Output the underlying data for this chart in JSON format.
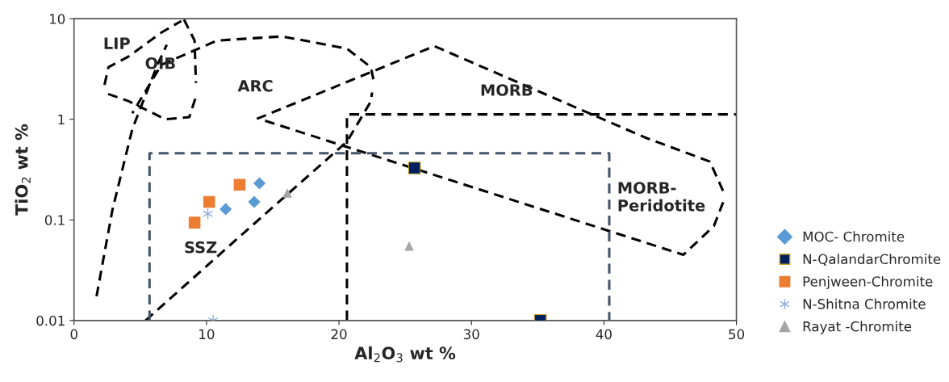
{
  "chart_data": {
    "type": "scatter",
    "xlabel": "Al$_{2}$O$_{3}$ wt %",
    "ylabel": "TiO$_{2}$ wt %",
    "xlim": [
      0,
      50
    ],
    "xticks": [
      0,
      10,
      20,
      30,
      40,
      50
    ],
    "ylim": [
      0.01,
      10
    ],
    "yticks": [
      0.01,
      0.1,
      1,
      10
    ],
    "log": "y",
    "grid": false,
    "legend": "right",
    "series": [
      {
        "type": "line",
        "color": "#000000",
        "line_style": "dashed",
        "marker": "none",
        "x": [
          1.7,
          2.9,
          4.4,
          6.3,
          7.0
        ],
        "values": [
          0.0174,
          0.126,
          0.8,
          3.49,
          5.5
        ]
      },
      {
        "type": "line",
        "color": "#000000",
        "line_style": "dashed",
        "marker": "none",
        "x": [
          8.3,
          9.1,
          9.2
        ],
        "values": [
          9.8,
          6.07,
          2.3
        ]
      },
      {
        "type": "line",
        "color": "#000000",
        "line_style": "dashed",
        "marker": "none",
        "x": [
          9.15,
          8.7,
          6.9,
          4.1,
          2.5
        ],
        "values": [
          1.6,
          1.05,
          1.0,
          1.52,
          1.8
        ]
      },
      {
        "type": "line",
        "color": "#000000",
        "line_style": "dashed",
        "marker": "none",
        "x": [
          2.3,
          2.6,
          4.1,
          6.6,
          8.1
        ],
        "values": [
          2.2,
          3.3,
          4.2,
          7.3,
          9.5
        ]
      },
      {
        "type": "line",
        "color": "#000000",
        "line_style": "dashed",
        "marker": "none",
        "x": [
          5.4,
          12.7,
          20.6,
          22.4,
          22.5
        ],
        "values": [
          0.01,
          0.072,
          0.6,
          1.5,
          1.85
        ]
      },
      {
        "type": "line",
        "color": "#000000",
        "line_style": "dashed",
        "marker": "none",
        "x": [
          22.6,
          22.4,
          20.6,
          15.7,
          10.8,
          6.6,
          4.4
        ],
        "values": [
          2.5,
          3.3,
          5.05,
          6.67,
          6.07,
          3.49,
          1.15
        ]
      },
      {
        "type": "line",
        "color": "#000000",
        "line_style": "dashed",
        "marker": "none",
        "x": [
          13.8,
          27.2,
          43.1,
          48.0,
          49.1
        ],
        "values": [
          1.01,
          5.34,
          0.66,
          0.38,
          0.18
        ]
      },
      {
        "type": "line",
        "color": "#000000",
        "line_style": "dashed",
        "marker": "none",
        "x": [
          49.0,
          48.3,
          46.0,
          14.4
        ],
        "values": [
          0.15,
          0.087,
          0.045,
          0.97
        ]
      },
      {
        "type": "line",
        "color": "#000000",
        "line_style": "dashed",
        "marker": "none",
        "x": [
          20.6,
          20.6,
          50
        ],
        "values": [
          0.01,
          1.12,
          1.12
        ]
      },
      {
        "type": "line",
        "color": "#44546a",
        "line_style": "dashed",
        "marker": "none",
        "x": [
          5.7,
          5.7,
          40.4,
          40.4
        ],
        "values": [
          0.01,
          0.46,
          0.46,
          0.01
        ]
      },
      {
        "name": "MOC- Chromite",
        "color": "#5b9bd5",
        "marker": "diamond",
        "x": [
          14.0,
          13.6,
          11.45
        ],
        "values": [
          0.231,
          0.151,
          0.128
        ]
      },
      {
        "name": "N-QalandarChromite",
        "color": "#002060",
        "marker": "square",
        "x": [
          25.7,
          35.2
        ],
        "values": [
          0.328,
          0.01
        ]
      },
      {
        "name": "Penjween-Chromite",
        "color": "#ed7d31",
        "marker": "square",
        "x": [
          12.5,
          10.2,
          9.1
        ],
        "values": [
          0.224,
          0.151,
          0.094
        ]
      },
      {
        "name": "N-Shitna Chromite",
        "color": "#8faadc",
        "marker": "cross",
        "x": [
          10.1,
          10.5
        ],
        "values": [
          0.115,
          0.01
        ]
      },
      {
        "name": "Rayat -Chromite",
        "color": "#a5a5a5",
        "marker": "triangle",
        "x": [
          16.1,
          25.3
        ],
        "values": [
          0.185,
          0.055
        ]
      }
    ],
    "annotations": [
      "LIP",
      "OIB",
      "ARC",
      "MORB",
      "MORB-\nPeridotite",
      "SSZ"
    ]
  }
}
